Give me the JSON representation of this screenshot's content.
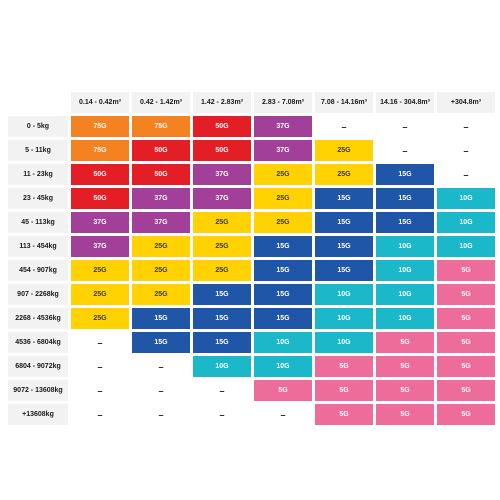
{
  "table": {
    "columns": [
      "0.14 - 0.42m³",
      "0.42 - 1.42m³",
      "1.42 - 2.83m³",
      "2.83 - 7.08m³",
      "7.08 - 14.16m³",
      "14.16 - 304.8m³",
      "+304.8m³"
    ],
    "rows": [
      {
        "label": "0 - 5kg",
        "cells": [
          "75G",
          "75G",
          "50G",
          "37G",
          "–",
          "–",
          "–"
        ]
      },
      {
        "label": "5 - 11kg",
        "cells": [
          "75G",
          "50G",
          "50G",
          "37G",
          "25G",
          "–",
          "–"
        ]
      },
      {
        "label": "11 - 23kg",
        "cells": [
          "50G",
          "50G",
          "37G",
          "25G",
          "25G",
          "15G",
          "–"
        ]
      },
      {
        "label": "23 - 45kg",
        "cells": [
          "50G",
          "37G",
          "37G",
          "25G",
          "15G",
          "15G",
          "10G"
        ]
      },
      {
        "label": "45 - 113kg",
        "cells": [
          "37G",
          "37G",
          "25G",
          "25G",
          "15G",
          "15G",
          "10G"
        ]
      },
      {
        "label": "113 - 454kg",
        "cells": [
          "37G",
          "25G",
          "25G",
          "15G",
          "15G",
          "10G",
          "10G"
        ]
      },
      {
        "label": "454 - 907kg",
        "cells": [
          "25G",
          "25G",
          "25G",
          "15G",
          "15G",
          "10G",
          "5G"
        ]
      },
      {
        "label": "907 - 2268kg",
        "cells": [
          "25G",
          "25G",
          "15G",
          "15G",
          "10G",
          "10G",
          "5G"
        ]
      },
      {
        "label": "2268 - 4536kg",
        "cells": [
          "25G",
          "15G",
          "15G",
          "15G",
          "10G",
          "10G",
          "5G"
        ]
      },
      {
        "label": "4536 - 6804kg",
        "cells": [
          "–",
          "15G",
          "15G",
          "10G",
          "10G",
          "5G",
          "5G"
        ]
      },
      {
        "label": "6804 - 9072kg",
        "cells": [
          "–",
          "–",
          "10G",
          "10G",
          "5G",
          "5G",
          "5G"
        ]
      },
      {
        "label": "9072 - 13608kg",
        "cells": [
          "–",
          "–",
          "–",
          "5G",
          "5G",
          "5G",
          "5G"
        ]
      },
      {
        "label": "+13608kg",
        "cells": [
          "–",
          "–",
          "–",
          "–",
          "5G",
          "5G",
          "5G"
        ]
      }
    ]
  },
  "colors": {
    "75G": "#f58220",
    "50G": "#e31e24",
    "37G": "#a23f98",
    "25G": "#ffd200",
    "15G": "#1f56a8",
    "10G": "#1bb8c9",
    "5G": "#ee6c9a",
    "header_bg": "#f2f2f2"
  }
}
